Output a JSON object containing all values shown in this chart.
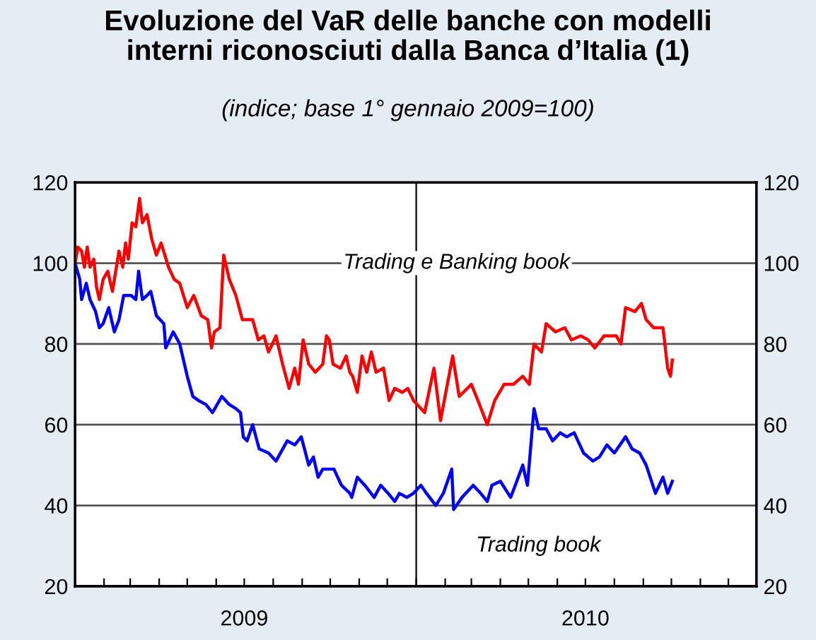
{
  "chart_data": {
    "type": "line",
    "title": "Evoluzione del VaR delle banche con modelli\ninterni riconosciuti dalla Banca d’Italia (1)",
    "subtitle": "(indice; base 1° gennaio 2009=100)",
    "xlim": [
      "2009-01-01",
      "2010-12-31"
    ],
    "xticks": [
      {
        "value": "2009-02-01",
        "label": null
      },
      {
        "value": "2009-03-01",
        "label": null
      },
      {
        "value": "2009-04-01",
        "label": null
      },
      {
        "value": "2009-05-01",
        "label": null
      },
      {
        "value": "2009-06-01",
        "label": null
      },
      {
        "value": "2009-07-01",
        "label": "2009"
      },
      {
        "value": "2009-08-01",
        "label": null
      },
      {
        "value": "2009-09-01",
        "label": null
      },
      {
        "value": "2009-10-01",
        "label": null
      },
      {
        "value": "2009-11-01",
        "label": null
      },
      {
        "value": "2009-12-01",
        "label": null
      },
      {
        "value": "2010-01-01",
        "label": null
      },
      {
        "value": "2010-02-01",
        "label": null
      },
      {
        "value": "2010-03-01",
        "label": null
      },
      {
        "value": "2010-04-01",
        "label": null
      },
      {
        "value": "2010-05-01",
        "label": null
      },
      {
        "value": "2010-06-01",
        "label": null
      },
      {
        "value": "2010-07-01",
        "label": "2010"
      },
      {
        "value": "2010-08-01",
        "label": null
      },
      {
        "value": "2010-09-01",
        "label": null
      },
      {
        "value": "2010-10-01",
        "label": null
      },
      {
        "value": "2010-11-01",
        "label": null
      },
      {
        "value": "2010-12-01",
        "label": null
      }
    ],
    "ylim": [
      20,
      120
    ],
    "yticks": [
      20,
      40,
      60,
      80,
      100,
      120
    ],
    "y2lim": [
      20,
      120
    ],
    "y2ticks": [
      20,
      40,
      60,
      80,
      100,
      120
    ],
    "grid": "y",
    "legend": false,
    "line_style": "solid",
    "marker": "none",
    "ref_lines": [
      {
        "axis": "x",
        "value": "2010-01-01",
        "label": null,
        "color": "#000000"
      }
    ],
    "series": [
      {
        "name": "Trading e Banking book",
        "color": "#ff0000",
        "x": [
          "2009-01-01",
          "2009-01-04",
          "2009-01-08",
          "2009-01-11",
          "2009-01-14",
          "2009-01-17",
          "2009-01-21",
          "2009-01-24",
          "2009-01-27",
          "2009-01-31",
          "2009-02-05",
          "2009-02-10",
          "2009-02-17",
          "2009-02-21",
          "2009-02-24",
          "2009-02-27",
          "2009-03-03",
          "2009-03-07",
          "2009-03-11",
          "2009-03-14",
          "2009-03-19",
          "2009-03-24",
          "2009-03-29",
          "2009-04-03",
          "2009-04-11",
          "2009-04-17",
          "2009-04-23",
          "2009-05-01",
          "2009-05-08",
          "2009-05-16",
          "2009-05-23",
          "2009-05-27",
          "2009-05-30",
          "2009-06-05",
          "2009-06-09",
          "2009-06-15",
          "2009-06-22",
          "2009-06-29",
          "2009-07-10",
          "2009-07-16",
          "2009-07-22",
          "2009-07-27",
          "2009-08-04",
          "2009-08-11",
          "2009-08-18",
          "2009-08-24",
          "2009-08-28",
          "2009-09-02",
          "2009-09-08",
          "2009-09-15",
          "2009-09-23",
          "2009-09-27",
          "2009-09-30",
          "2009-10-04",
          "2009-10-12",
          "2009-10-18",
          "2009-10-22",
          "2009-10-25",
          "2009-10-30",
          "2009-11-04",
          "2009-11-09",
          "2009-11-14",
          "2009-11-19",
          "2009-11-27",
          "2009-12-03",
          "2009-12-09",
          "2009-12-17",
          "2009-12-23",
          "2009-12-29",
          "2010-01-10",
          "2010-01-20",
          "2010-01-27",
          "2010-02-09",
          "2010-02-16",
          "2010-03-01",
          "2010-03-08",
          "2010-03-18",
          "2010-03-26",
          "2010-04-05",
          "2010-04-15",
          "2010-04-25",
          "2010-05-02",
          "2010-05-07",
          "2010-05-15",
          "2010-05-20",
          "2010-05-30",
          "2010-06-09",
          "2010-06-16",
          "2010-06-26",
          "2010-07-04",
          "2010-07-11",
          "2010-07-21",
          "2010-08-03",
          "2010-08-08",
          "2010-08-13",
          "2010-08-23",
          "2010-08-30",
          "2010-09-04",
          "2010-09-12",
          "2010-09-22",
          "2010-09-27",
          "2010-09-30",
          "2010-10-02"
        ],
        "values": [
          100,
          104,
          103,
          99,
          104,
          99,
          101,
          94,
          91,
          96,
          98,
          93,
          103,
          99,
          105,
          101,
          110,
          109,
          116,
          110,
          112,
          106,
          102,
          105,
          99,
          96,
          95,
          89,
          92,
          87,
          86,
          79,
          83,
          84,
          102,
          96,
          92,
          86,
          86,
          81,
          82,
          78,
          82,
          75,
          69,
          74,
          70,
          81,
          75,
          73,
          75,
          82,
          81,
          75,
          74,
          77,
          73,
          72,
          68,
          77,
          73,
          78,
          73,
          74,
          66,
          69,
          68,
          69,
          66,
          63,
          74,
          61,
          77,
          67,
          70,
          66,
          60,
          66,
          70,
          70,
          72,
          70,
          80,
          78,
          85,
          83,
          84,
          81,
          82,
          81,
          79,
          82,
          82,
          80,
          89,
          88,
          90,
          86,
          84,
          84,
          74,
          72,
          76
        ]
      },
      {
        "name": "Trading book",
        "color": "#0000ff",
        "x": [
          "2009-01-01",
          "2009-01-06",
          "2009-01-08",
          "2009-01-13",
          "2009-01-17",
          "2009-01-23",
          "2009-01-27",
          "2009-01-31",
          "2009-02-06",
          "2009-02-12",
          "2009-02-17",
          "2009-02-22",
          "2009-03-02",
          "2009-03-07",
          "2009-03-10",
          "2009-03-14",
          "2009-03-19",
          "2009-03-23",
          "2009-03-29",
          "2009-04-06",
          "2009-04-08",
          "2009-04-16",
          "2009-04-23",
          "2009-05-01",
          "2009-05-07",
          "2009-05-13",
          "2009-05-21",
          "2009-05-28",
          "2009-06-07",
          "2009-06-15",
          "2009-06-22",
          "2009-06-27",
          "2009-06-30",
          "2009-07-04",
          "2009-07-10",
          "2009-07-17",
          "2009-07-27",
          "2009-08-04",
          "2009-08-16",
          "2009-08-24",
          "2009-08-31",
          "2009-09-08",
          "2009-09-13",
          "2009-09-18",
          "2009-09-23",
          "2009-10-05",
          "2009-10-13",
          "2009-10-22",
          "2009-10-24",
          "2009-10-30",
          "2009-11-07",
          "2009-11-17",
          "2009-11-24",
          "2009-12-02",
          "2009-12-09",
          "2009-12-14",
          "2009-12-22",
          "2009-12-29",
          "2010-01-06",
          "2010-01-12",
          "2010-01-22",
          "2010-01-30",
          "2010-02-08",
          "2010-02-10",
          "2010-02-19",
          "2010-03-03",
          "2010-03-11",
          "2010-03-18",
          "2010-03-23",
          "2010-04-01",
          "2010-04-12",
          "2010-04-17",
          "2010-04-25",
          "2010-04-30",
          "2010-05-07",
          "2010-05-12",
          "2010-05-20",
          "2010-05-27",
          "2010-06-04",
          "2010-06-11",
          "2010-06-19",
          "2010-06-29",
          "2010-07-09",
          "2010-07-16",
          "2010-07-24",
          "2010-08-01",
          "2010-08-13",
          "2010-08-20",
          "2010-08-28",
          "2010-09-04",
          "2010-09-14",
          "2010-09-22",
          "2010-09-27",
          "2010-10-02"
        ],
        "values": [
          100,
          96,
          91,
          95,
          91,
          88,
          84,
          85,
          89,
          83,
          86,
          92,
          92,
          91,
          98,
          91,
          92,
          93,
          87,
          85,
          79,
          83,
          80,
          72,
          67,
          66,
          65,
          63,
          67,
          65,
          64,
          63,
          57,
          56,
          60,
          54,
          53,
          51,
          56,
          55,
          57,
          50,
          52,
          47,
          49,
          49,
          45,
          43,
          42,
          47,
          45,
          42,
          45,
          43,
          41,
          43,
          42,
          43,
          45,
          43,
          40,
          43,
          49,
          39,
          42,
          45,
          43,
          41,
          45,
          46,
          42,
          45,
          50,
          45,
          64,
          59,
          59,
          56,
          58,
          57,
          58,
          53,
          51,
          52,
          55,
          53,
          57,
          54,
          53,
          50,
          43,
          47,
          43,
          46
        ]
      }
    ]
  }
}
